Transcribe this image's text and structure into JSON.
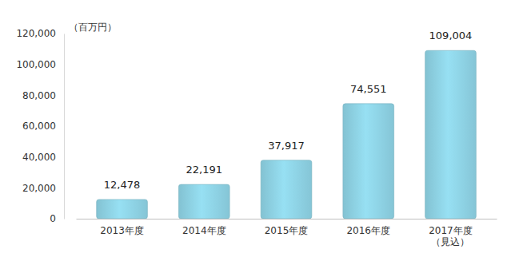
{
  "chart_data": {
    "type": "bar",
    "title": "（百万円）",
    "categories": [
      "2013年度",
      "2014年度",
      "2015年度",
      "2016年度",
      "2017年度\n（見込）"
    ],
    "values": [
      12478,
      22191,
      37917,
      74551,
      109004
    ],
    "value_labels": [
      "12,478",
      "22,191",
      "37,917",
      "74,551",
      "109,004"
    ],
    "data_labels": true,
    "color": "#8fd4e6",
    "ylim": [
      0,
      120000
    ],
    "yticks": [
      0,
      {
        "value": 20000,
        "label": "20,000"
      },
      {
        "value": 40000,
        "label": "40,000"
      },
      {
        "value": 60000,
        "label": "60,000"
      },
      {
        "value": 80000,
        "label": "80,000"
      },
      {
        "value": 100000,
        "label": "100,000"
      },
      {
        "value": 120000,
        "label": "120,000"
      }
    ],
    "grid": false
  }
}
